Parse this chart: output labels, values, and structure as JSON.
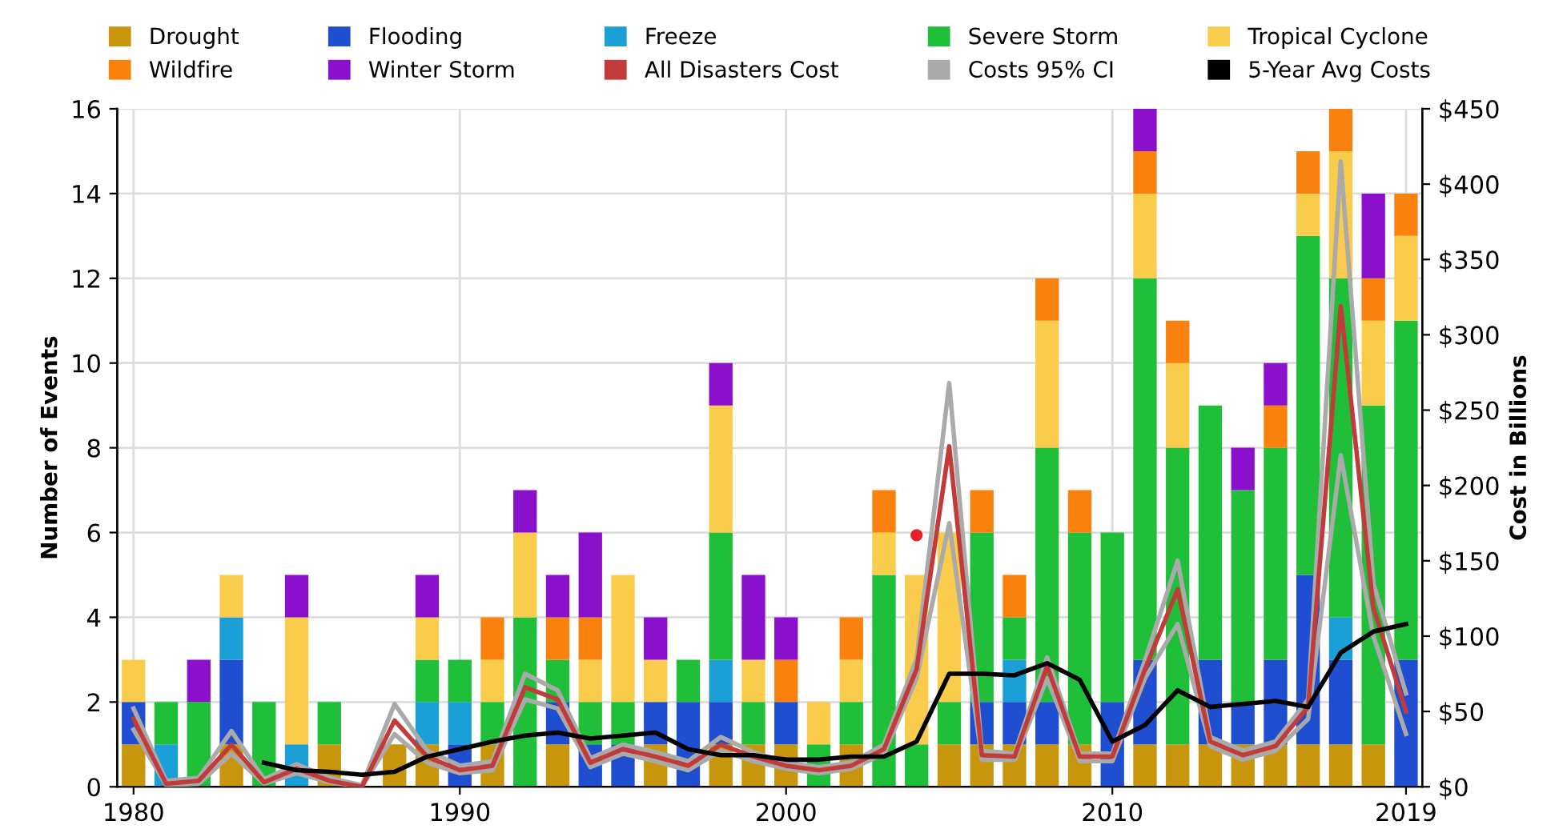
{
  "chart_data": {
    "type": "bar",
    "stacked": true,
    "ylabel": "Number of Events",
    "y2label": "Cost in Billions",
    "x": [
      1980,
      1981,
      1982,
      1983,
      1984,
      1985,
      1986,
      1987,
      1988,
      1989,
      1990,
      1991,
      1992,
      1993,
      1994,
      1995,
      1996,
      1997,
      1998,
      1999,
      2000,
      2001,
      2002,
      2003,
      2004,
      2005,
      2006,
      2007,
      2008,
      2009,
      2010,
      2011,
      2012,
      2013,
      2014,
      2015,
      2016,
      2017,
      2018,
      2019
    ],
    "xlim": [
      1979.5,
      2019.5
    ],
    "xticks": [
      1980,
      1990,
      2000,
      2010,
      2019
    ],
    "ylim": [
      0,
      16
    ],
    "yticks": [
      0,
      2,
      4,
      6,
      8,
      10,
      12,
      14,
      16
    ],
    "y2lim": [
      0,
      450
    ],
    "y2ticks": [
      {
        "value": 0,
        "label": "$0"
      },
      {
        "value": 50,
        "label": "$50"
      },
      {
        "value": 100,
        "label": "$100"
      },
      {
        "value": 150,
        "label": "$150"
      },
      {
        "value": 200,
        "label": "$200"
      },
      {
        "value": 250,
        "label": "$250"
      },
      {
        "value": 300,
        "label": "$300"
      },
      {
        "value": 350,
        "label": "$350"
      },
      {
        "value": 400,
        "label": "$400"
      },
      {
        "value": 450,
        "label": "$450"
      }
    ],
    "grid": true,
    "legend": "top",
    "series": [
      {
        "name": "Drought",
        "color": "#c8960c",
        "values": [
          1,
          0,
          0,
          1,
          0,
          0,
          1,
          0,
          1,
          1,
          0,
          1,
          0,
          1,
          0,
          0,
          1,
          0,
          1,
          1,
          1,
          0,
          1,
          0,
          0,
          1,
          1,
          1,
          1,
          1,
          0,
          1,
          1,
          1,
          1,
          1,
          1,
          1,
          1,
          0
        ]
      },
      {
        "name": "Flooding",
        "color": "#1f4fd0",
        "values": [
          1,
          0,
          0,
          2,
          0,
          0,
          0,
          0,
          0,
          0,
          1,
          0,
          0,
          1,
          1,
          1,
          1,
          2,
          1,
          0,
          1,
          0,
          0,
          0,
          0,
          0,
          1,
          1,
          1,
          0,
          2,
          2,
          0,
          2,
          1,
          2,
          4,
          2,
          0,
          3
        ]
      },
      {
        "name": "Freeze",
        "color": "#1a9fd6",
        "values": [
          0,
          1,
          0,
          1,
          0,
          1,
          0,
          0,
          0,
          1,
          1,
          0,
          0,
          0,
          0,
          0,
          0,
          0,
          1,
          0,
          0,
          0,
          0,
          0,
          0,
          0,
          0,
          1,
          0,
          0,
          0,
          0,
          0,
          0,
          0,
          0,
          0,
          1,
          0,
          0
        ]
      },
      {
        "name": "Severe Storm",
        "color": "#1fbf3a",
        "values": [
          0,
          1,
          2,
          0,
          2,
          0,
          1,
          0,
          0,
          1,
          1,
          1,
          4,
          1,
          1,
          1,
          0,
          1,
          3,
          1,
          0,
          1,
          1,
          5,
          1,
          1,
          4,
          1,
          6,
          5,
          4,
          9,
          7,
          6,
          5,
          5,
          8,
          8,
          8,
          8
        ]
      },
      {
        "name": "Tropical Cyclone",
        "color": "#f9cd4b",
        "values": [
          1,
          0,
          0,
          1,
          0,
          3,
          0,
          0,
          0,
          1,
          0,
          1,
          2,
          0,
          1,
          3,
          1,
          0,
          3,
          1,
          0,
          1,
          1,
          1,
          4,
          4,
          0,
          0,
          3,
          0,
          0,
          2,
          2,
          0,
          0,
          0,
          1,
          3,
          2,
          2
        ]
      },
      {
        "name": "Wildfire",
        "color": "#f9820f",
        "values": [
          0,
          0,
          0,
          0,
          0,
          0,
          0,
          0,
          0,
          0,
          0,
          1,
          0,
          1,
          1,
          0,
          0,
          0,
          0,
          0,
          1,
          0,
          1,
          1,
          0,
          0,
          1,
          1,
          1,
          1,
          0,
          1,
          1,
          0,
          0,
          1,
          1,
          1,
          1,
          1
        ]
      },
      {
        "name": "Winter Storm",
        "color": "#8b10cc",
        "values": [
          0,
          0,
          1,
          0,
          0,
          1,
          0,
          0,
          0,
          1,
          0,
          0,
          1,
          1,
          2,
          0,
          1,
          0,
          1,
          2,
          1,
          0,
          0,
          0,
          0,
          0,
          0,
          0,
          0,
          0,
          0,
          1,
          0,
          0,
          1,
          1,
          0,
          0,
          2,
          0
        ]
      },
      {
        "name": "All Disasters Cost",
        "type": "line",
        "axis": "y2",
        "color": "#c23b3b",
        "values": [
          45,
          2,
          4,
          28,
          3,
          12,
          4,
          0,
          44,
          20,
          11,
          14,
          66,
          58,
          16,
          25,
          20,
          14,
          28,
          20,
          14,
          11,
          14,
          25,
          78,
          226,
          21,
          20,
          80,
          20,
          20,
          78,
          131,
          30,
          21,
          27,
          53,
          319,
          119,
          50
        ]
      },
      {
        "name": "Costs 95% CI",
        "type": "line",
        "axis": "y2",
        "color": "#aaaaaa",
        "values": [
          52,
          4,
          6,
          37,
          5,
          15,
          6,
          1,
          55,
          24,
          14,
          17,
          75,
          64,
          19,
          28,
          23,
          17,
          33,
          23,
          16,
          13,
          16,
          28,
          85,
          268,
          24,
          22,
          86,
          22,
          22,
          84,
          150,
          33,
          24,
          30,
          58,
          415,
          135,
          62
        ]
      },
      {
        "type": "line",
        "axis": "y2",
        "color": "#aaaaaa",
        "values": [
          38,
          1,
          2,
          22,
          2,
          9,
          3,
          0,
          35,
          16,
          9,
          11,
          58,
          52,
          13,
          22,
          17,
          11,
          24,
          17,
          12,
          9,
          12,
          22,
          72,
          175,
          18,
          18,
          72,
          17,
          17,
          72,
          108,
          27,
          18,
          24,
          45,
          220,
          100,
          35
        ]
      },
      {
        "name": "5-Year Avg Costs",
        "type": "line",
        "axis": "y2",
        "color": "#000000",
        "values": [
          null,
          null,
          null,
          null,
          16,
          11,
          10,
          8,
          10,
          20,
          25,
          30,
          34,
          36,
          32,
          34,
          36,
          25,
          21,
          21,
          18,
          18,
          20,
          20,
          30,
          75,
          75,
          74,
          82,
          71,
          30,
          41,
          64,
          53,
          55,
          57,
          53,
          89,
          103,
          108
        ]
      },
      {
        "type": "scatter",
        "axis": "y2",
        "color": "#e8202a",
        "x": [
          2004
        ],
        "values": [
          167
        ]
      }
    ]
  }
}
